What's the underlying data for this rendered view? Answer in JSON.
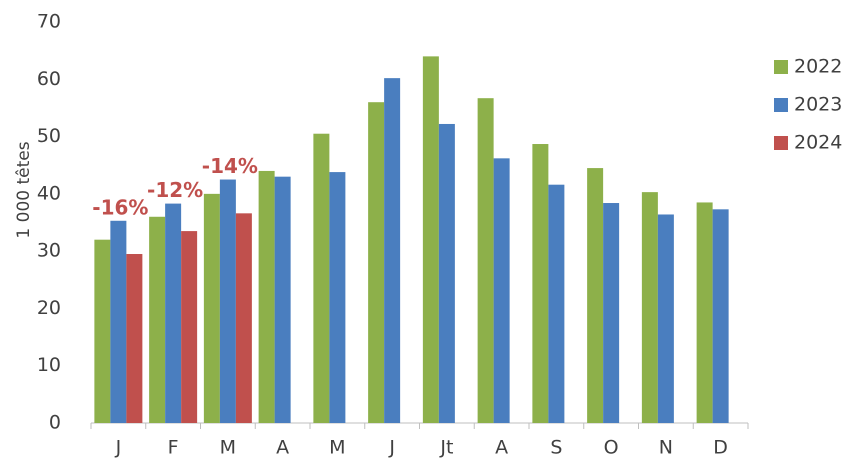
{
  "chart_data": {
    "type": "bar",
    "y_label": "1 000 têtes",
    "categories": [
      "J",
      "F",
      "M",
      "A",
      "M",
      "J",
      "Jt",
      "A",
      "S",
      "O",
      "N",
      "D"
    ],
    "series": [
      {
        "name": "2022",
        "color": "#8db04a",
        "values": [
          32,
          36,
          40,
          44,
          50.5,
          56,
          64,
          56.7,
          48.7,
          44.5,
          40.3,
          38.5
        ]
      },
      {
        "name": "2023",
        "color": "#4a7ebf",
        "values": [
          35.3,
          38.3,
          42.5,
          43,
          43.8,
          60.2,
          52.2,
          46.2,
          41.6,
          38.4,
          36.4,
          37.3
        ]
      },
      {
        "name": "2024",
        "color": "#c0504d",
        "values": [
          29.5,
          33.5,
          36.6,
          null,
          null,
          null,
          null,
          null,
          null,
          null,
          null,
          null
        ]
      }
    ],
    "annotations": [
      "-16%",
      "-12%",
      "-14%"
    ],
    "annotation_color": "#c0504d",
    "ylim": [
      0,
      70
    ],
    "yticks": [
      0,
      10,
      20,
      30,
      40,
      50,
      60,
      70
    ],
    "grid": false,
    "legend": "right"
  }
}
